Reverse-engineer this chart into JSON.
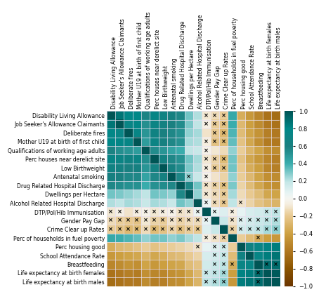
{
  "labels": [
    "Disability Living Allowance",
    "Job Seeker's Allowance Claimants",
    "Deliberate fires",
    "Mother U19 at birth of first child",
    "Qualifications of working age adults",
    "Perc houses near derelict site",
    "Low Birthweight",
    "Antenatal smoking",
    "Drug Related Hospital Discharge",
    "Dwellings per Hectare",
    "Alcohol Related Hospital Discharge",
    "DTP/Pol/Hib Immunisation",
    "Gender Pay Gap",
    "Crime Clear up Rates",
    "Perc of households in fuel poverty",
    "Perc housing good",
    "School Attendance Rate",
    "Breastfeeding",
    "Life expectancy at birth females",
    "Life expectancy at birth males"
  ],
  "corr": [
    [
      1.0,
      0.87,
      0.78,
      0.8,
      0.58,
      0.74,
      0.67,
      0.62,
      0.57,
      0.32,
      0.22,
      -0.08,
      -0.13,
      -0.18,
      0.42,
      -0.33,
      -0.43,
      -0.53,
      -0.63,
      -0.66
    ],
    [
      0.87,
      1.0,
      0.72,
      0.77,
      0.53,
      0.7,
      0.64,
      0.6,
      0.54,
      0.3,
      0.2,
      -0.04,
      -0.18,
      -0.23,
      0.4,
      -0.28,
      -0.4,
      -0.5,
      -0.6,
      -0.63
    ],
    [
      0.78,
      0.72,
      1.0,
      0.74,
      0.5,
      0.67,
      0.6,
      0.57,
      0.52,
      0.27,
      0.24,
      -0.1,
      -0.2,
      -0.28,
      0.37,
      -0.26,
      -0.38,
      -0.46,
      -0.56,
      -0.6
    ],
    [
      0.8,
      0.77,
      0.74,
      1.0,
      0.47,
      0.7,
      0.62,
      0.57,
      0.52,
      0.24,
      0.22,
      -0.06,
      -0.23,
      -0.26,
      0.34,
      -0.23,
      -0.36,
      -0.48,
      -0.58,
      -0.6
    ],
    [
      0.58,
      0.53,
      0.5,
      0.47,
      1.0,
      0.54,
      0.5,
      0.44,
      0.4,
      0.2,
      0.17,
      -0.03,
      -0.08,
      -0.13,
      0.27,
      -0.18,
      -0.3,
      -0.38,
      -0.48,
      -0.5
    ],
    [
      0.74,
      0.7,
      0.67,
      0.7,
      0.54,
      1.0,
      0.64,
      0.57,
      0.52,
      0.32,
      0.24,
      -0.08,
      -0.16,
      -0.26,
      0.32,
      -0.23,
      -0.36,
      -0.43,
      -0.53,
      -0.56
    ],
    [
      0.67,
      0.64,
      0.6,
      0.62,
      0.5,
      0.64,
      1.0,
      0.62,
      0.54,
      0.3,
      0.22,
      -0.06,
      -0.18,
      -0.23,
      0.32,
      -0.2,
      -0.33,
      -0.4,
      -0.53,
      -0.56
    ],
    [
      0.62,
      0.6,
      0.57,
      0.57,
      0.44,
      0.57,
      0.62,
      1.0,
      0.57,
      0.27,
      0.17,
      -0.03,
      -0.1,
      -0.16,
      0.27,
      -0.18,
      -0.28,
      -0.38,
      -0.48,
      -0.5
    ],
    [
      0.57,
      0.54,
      0.52,
      0.52,
      0.4,
      0.52,
      0.54,
      0.57,
      1.0,
      0.57,
      0.32,
      -0.1,
      -0.16,
      -0.23,
      0.3,
      -0.16,
      -0.26,
      -0.36,
      -0.46,
      -0.48
    ],
    [
      0.32,
      0.3,
      0.27,
      0.24,
      0.2,
      0.32,
      0.3,
      0.27,
      0.57,
      1.0,
      0.27,
      -0.08,
      -0.13,
      -0.18,
      0.24,
      -0.13,
      -0.2,
      -0.26,
      -0.36,
      -0.38
    ],
    [
      0.22,
      0.2,
      0.24,
      0.22,
      0.17,
      0.24,
      0.22,
      0.17,
      0.32,
      0.27,
      1.0,
      0.04,
      -0.13,
      -0.2,
      0.2,
      -0.1,
      -0.16,
      -0.23,
      -0.28,
      -0.3
    ],
    [
      -0.08,
      -0.04,
      -0.1,
      -0.06,
      -0.03,
      -0.08,
      -0.06,
      -0.03,
      -0.1,
      -0.08,
      0.04,
      1.0,
      0.07,
      0.1,
      -0.06,
      0.07,
      0.12,
      0.14,
      0.17,
      0.2
    ],
    [
      -0.13,
      -0.18,
      -0.2,
      -0.23,
      -0.08,
      -0.16,
      -0.18,
      -0.1,
      -0.16,
      -0.13,
      -0.13,
      0.07,
      1.0,
      0.17,
      -0.1,
      0.1,
      0.14,
      0.17,
      0.2,
      0.22
    ],
    [
      -0.18,
      -0.23,
      -0.28,
      -0.26,
      -0.13,
      -0.26,
      -0.23,
      -0.16,
      -0.23,
      -0.18,
      -0.2,
      0.1,
      0.17,
      1.0,
      -0.16,
      0.14,
      0.17,
      0.2,
      0.24,
      0.27
    ],
    [
      0.42,
      0.4,
      0.37,
      0.34,
      0.27,
      0.32,
      0.32,
      0.27,
      0.3,
      0.24,
      0.2,
      -0.06,
      -0.1,
      -0.16,
      1.0,
      -0.18,
      -0.26,
      -0.33,
      -0.4,
      -0.43
    ],
    [
      -0.33,
      -0.28,
      -0.26,
      -0.23,
      -0.18,
      -0.23,
      -0.2,
      -0.18,
      -0.16,
      -0.13,
      -0.1,
      0.07,
      0.1,
      0.14,
      -0.18,
      1.0,
      0.67,
      0.72,
      0.82,
      0.84
    ],
    [
      -0.43,
      -0.4,
      -0.38,
      -0.36,
      -0.3,
      -0.36,
      -0.33,
      -0.28,
      -0.26,
      -0.2,
      -0.16,
      0.12,
      0.14,
      0.17,
      -0.26,
      0.67,
      1.0,
      0.74,
      0.84,
      0.87
    ],
    [
      -0.53,
      -0.5,
      -0.46,
      -0.48,
      -0.38,
      -0.43,
      -0.4,
      -0.38,
      -0.36,
      -0.26,
      -0.23,
      0.14,
      0.17,
      0.2,
      -0.33,
      0.72,
      0.74,
      1.0,
      0.9,
      0.9
    ],
    [
      -0.63,
      -0.6,
      -0.56,
      -0.58,
      -0.48,
      -0.53,
      -0.53,
      -0.48,
      -0.46,
      -0.36,
      -0.28,
      0.17,
      0.2,
      0.24,
      -0.4,
      0.82,
      0.84,
      0.9,
      1.0,
      0.97
    ],
    [
      -0.66,
      -0.63,
      -0.6,
      -0.6,
      -0.5,
      -0.56,
      -0.56,
      -0.5,
      -0.48,
      -0.38,
      -0.3,
      0.2,
      0.22,
      0.27,
      -0.43,
      0.84,
      0.87,
      0.9,
      0.97,
      1.0
    ]
  ],
  "not_significant": [
    [
      0,
      0,
      0,
      0,
      0,
      0,
      0,
      0,
      0,
      0,
      0,
      1,
      1,
      1,
      0,
      0,
      0,
      0,
      0,
      0
    ],
    [
      0,
      0,
      0,
      0,
      0,
      0,
      0,
      0,
      0,
      0,
      0,
      1,
      1,
      1,
      0,
      0,
      0,
      0,
      0,
      0
    ],
    [
      0,
      0,
      0,
      0,
      0,
      0,
      0,
      0,
      0,
      0,
      0,
      0,
      1,
      1,
      0,
      0,
      0,
      0,
      0,
      0
    ],
    [
      0,
      0,
      0,
      0,
      0,
      0,
      0,
      0,
      0,
      0,
      0,
      1,
      1,
      1,
      0,
      0,
      0,
      0,
      0,
      0
    ],
    [
      0,
      0,
      0,
      0,
      0,
      0,
      0,
      0,
      0,
      0,
      0,
      1,
      0,
      0,
      0,
      0,
      0,
      0,
      0,
      0
    ],
    [
      0,
      0,
      0,
      0,
      0,
      0,
      0,
      0,
      0,
      0,
      0,
      1,
      1,
      1,
      0,
      0,
      0,
      0,
      0,
      0
    ],
    [
      0,
      0,
      0,
      0,
      0,
      0,
      0,
      0,
      0,
      0,
      0,
      1,
      1,
      1,
      0,
      0,
      0,
      0,
      0,
      0
    ],
    [
      0,
      0,
      0,
      0,
      0,
      0,
      0,
      0,
      0,
      1,
      0,
      1,
      0,
      0,
      0,
      0,
      0,
      0,
      0,
      0
    ],
    [
      0,
      0,
      0,
      0,
      0,
      0,
      0,
      0,
      0,
      0,
      0,
      1,
      1,
      1,
      0,
      0,
      0,
      0,
      0,
      0
    ],
    [
      0,
      0,
      0,
      0,
      0,
      0,
      0,
      0,
      0,
      0,
      0,
      1,
      1,
      1,
      0,
      0,
      0,
      0,
      0,
      0
    ],
    [
      0,
      0,
      0,
      0,
      0,
      0,
      0,
      0,
      0,
      0,
      0,
      1,
      1,
      1,
      0,
      1,
      0,
      0,
      0,
      0
    ],
    [
      1,
      1,
      0,
      1,
      1,
      1,
      1,
      1,
      1,
      1,
      1,
      0,
      1,
      0,
      1,
      0,
      0,
      0,
      1,
      1
    ],
    [
      1,
      1,
      1,
      1,
      1,
      1,
      1,
      1,
      1,
      1,
      1,
      1,
      0,
      0,
      1,
      1,
      1,
      1,
      1,
      1
    ],
    [
      1,
      1,
      1,
      1,
      1,
      1,
      1,
      1,
      1,
      1,
      1,
      0,
      0,
      0,
      1,
      1,
      1,
      1,
      1,
      1
    ],
    [
      0,
      0,
      0,
      0,
      0,
      0,
      0,
      0,
      0,
      0,
      0,
      1,
      1,
      1,
      0,
      0,
      0,
      1,
      0,
      0
    ],
    [
      0,
      0,
      0,
      0,
      0,
      0,
      0,
      0,
      0,
      0,
      1,
      0,
      1,
      1,
      0,
      0,
      0,
      0,
      0,
      0
    ],
    [
      0,
      0,
      0,
      0,
      0,
      0,
      0,
      0,
      0,
      0,
      0,
      0,
      1,
      1,
      0,
      0,
      0,
      0,
      0,
      0
    ],
    [
      0,
      0,
      0,
      0,
      0,
      0,
      0,
      0,
      0,
      0,
      0,
      0,
      1,
      1,
      1,
      0,
      0,
      0,
      1,
      1
    ],
    [
      0,
      0,
      0,
      0,
      0,
      0,
      0,
      0,
      0,
      0,
      0,
      1,
      1,
      1,
      0,
      0,
      0,
      1,
      0,
      0
    ],
    [
      0,
      0,
      0,
      0,
      0,
      0,
      0,
      0,
      0,
      0,
      0,
      1,
      1,
      1,
      0,
      0,
      0,
      1,
      0,
      0
    ]
  ],
  "vmin": -1.0,
  "vmax": 1.0,
  "colorbar_ticks": [
    1,
    0.8,
    0.6,
    0.4,
    0.2,
    0,
    -0.2,
    -0.4,
    -0.6,
    -0.8,
    -1
  ],
  "label_fontsize": 5.5,
  "marker_fontsize": 6,
  "cbar_fontsize": 6
}
